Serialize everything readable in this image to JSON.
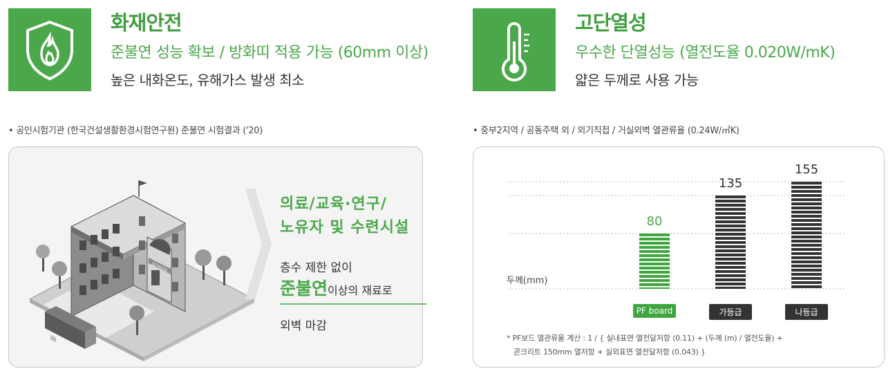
{
  "left": {
    "title": "화재안전",
    "subtitle": "준불연 성능 확보 / 방화띠 적용 가능 (60mm 이상)",
    "desc": "높은 내화온도, 유해가스 발생 최소",
    "note": "• 공인시험기관 (한국건설생활환경시험연구원) 준불연 시험결과 ('20)",
    "panel": {
      "category_line1": "의료/교육·연구/",
      "category_line2": "노유자 및 수련시설",
      "line1": "층수 제한 없이",
      "emphasis": "준불연",
      "emphasis_suffix": "이상의 재료로",
      "line3": "외벽 마감",
      "school_sign": "SCHOOL"
    },
    "colors": {
      "green": "#4aa84a"
    }
  },
  "right": {
    "title": "고단열성",
    "subtitle": "우수한 단열성능 (열전도율 0.020W/mK)",
    "desc": "얇은 두께로 사용 가능",
    "note": "• 중부2지역 / 공동주택 외 / 외기직접 / 거실외벽 열관류율 (0.24W/㎡K)",
    "chart_data": {
      "type": "bar",
      "ylabel": "두께(mm)",
      "categories": [
        "PF board",
        "가등급",
        "나등급"
      ],
      "values": [
        80,
        135,
        155
      ],
      "series_colors": [
        "#3fa63f",
        "#333333",
        "#333333"
      ],
      "grid": true
    },
    "formula_line1": "* PF보드 열관류율 계산 : 1 / { 실내표면 열전달저항 (0.11) + (두께 (m) / 열전도율) +",
    "formula_line2": "콘크리트 150mm 열저항 + 실외표면 열전달저항 (0.043) }"
  }
}
